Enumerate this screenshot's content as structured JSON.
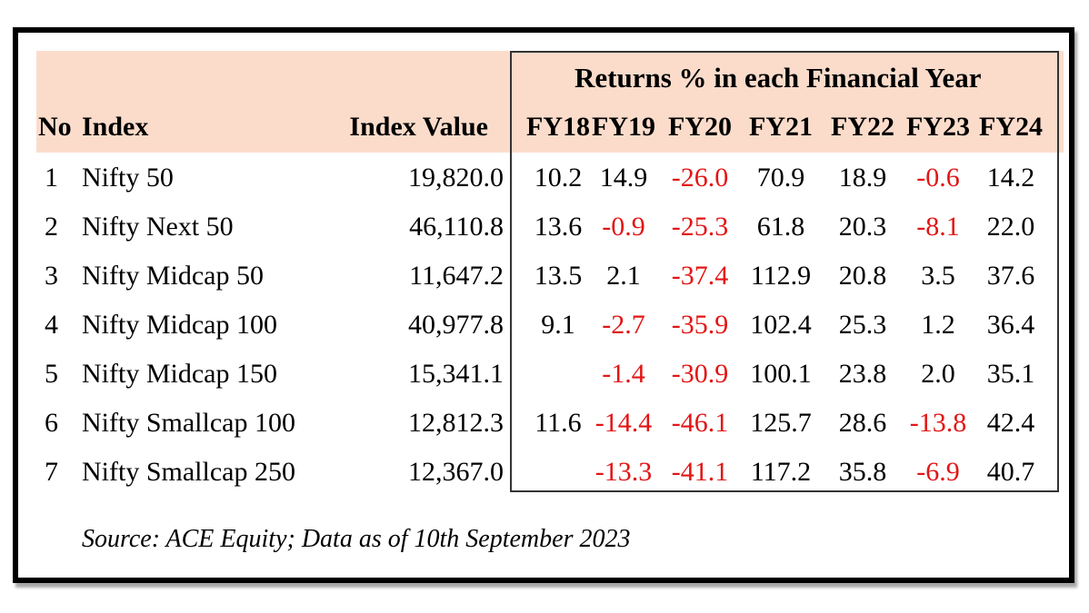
{
  "chart_data": {
    "type": "table",
    "group_header": "Returns % in each Financial Year",
    "columns": {
      "no": "No",
      "index": "Index",
      "value": "Index Value",
      "years": [
        "FY18",
        "FY19",
        "FY20",
        "FY21",
        "FY22",
        "FY23",
        "FY24"
      ]
    },
    "rows": [
      {
        "no": "1",
        "index": "Nifty 50",
        "value": "19,820.0",
        "returns": [
          "10.2",
          "14.9",
          "-26.0",
          "70.9",
          "18.9",
          "-0.6",
          "14.2"
        ]
      },
      {
        "no": "2",
        "index": "Nifty Next 50",
        "value": "46,110.8",
        "returns": [
          "13.6",
          "-0.9",
          "-25.3",
          "61.8",
          "20.3",
          "-8.1",
          "22.0"
        ]
      },
      {
        "no": "3",
        "index": "Nifty Midcap 50",
        "value": "11,647.2",
        "returns": [
          "13.5",
          "2.1",
          "-37.4",
          "112.9",
          "20.8",
          "3.5",
          "37.6"
        ]
      },
      {
        "no": "4",
        "index": "Nifty Midcap 100",
        "value": "40,977.8",
        "returns": [
          "9.1",
          "-2.7",
          "-35.9",
          "102.4",
          "25.3",
          "1.2",
          "36.4"
        ]
      },
      {
        "no": "5",
        "index": "Nifty Midcap 150",
        "value": "15,341.1",
        "returns": [
          "",
          "-1.4",
          "-30.9",
          "100.1",
          "23.8",
          "2.0",
          "35.1"
        ]
      },
      {
        "no": "6",
        "index": "Nifty Smallcap 100",
        "value": "12,812.3",
        "returns": [
          "11.6",
          "-14.4",
          "-46.1",
          "125.7",
          "28.6",
          "-13.8",
          "42.4"
        ]
      },
      {
        "no": "7",
        "index": "Nifty Smallcap 250",
        "value": "12,367.0",
        "returns": [
          "",
          "-13.3",
          "-41.1",
          "117.2",
          "35.8",
          "-6.9",
          "40.7"
        ]
      }
    ],
    "source": "Source: ACE Equity; Data as of 10th September 2023",
    "negative_color": "#e31515",
    "header_background": "#fbdccb"
  }
}
